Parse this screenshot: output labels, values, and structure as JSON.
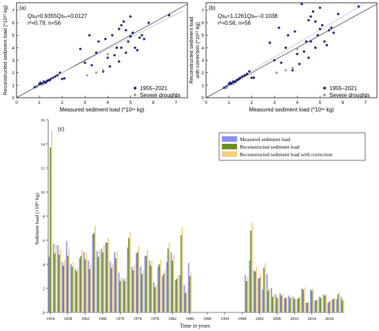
{
  "chart_data": [
    {
      "panel": "(a)",
      "type": "scatter",
      "equation": "Qsₐ=0.9355Qsₘ+0.0127",
      "stats": "r²=0.79, n=56",
      "xlabel": "Measured sediment load (*10¹¹ kg)",
      "ylabel": "Reconstructed sediment load (*10¹¹ kg)",
      "xlim": [
        0,
        7.5
      ],
      "ylim": [
        0,
        7.6
      ],
      "xticks": [
        "0",
        "1",
        "2",
        "3",
        "4",
        "5",
        "6",
        "7"
      ],
      "yticks": [
        "0",
        "1",
        "2",
        "3",
        "4",
        "5",
        "6",
        "7"
      ],
      "legend": [
        "1955–2021",
        "Severe droughts"
      ],
      "legend_position": "bottom-right",
      "series": [
        {
          "name": "1955–2021",
          "color": "#1a237e",
          "x": [
            0.8,
            0.9,
            1.0,
            1.05,
            1.1,
            1.15,
            1.2,
            1.25,
            1.3,
            1.35,
            1.4,
            1.45,
            1.5,
            1.6,
            1.7,
            1.8,
            1.9,
            2.0,
            2.1,
            2.8,
            3.0,
            3.2,
            3.3,
            3.5,
            3.6,
            3.8,
            3.9,
            4.0,
            4.1,
            4.2,
            4.3,
            4.4,
            4.5,
            4.5,
            4.6,
            4.6,
            4.7,
            4.8,
            4.8,
            4.9,
            5.0,
            5.0,
            5.1,
            5.2,
            5.3,
            5.4,
            5.5,
            5.6,
            5.8,
            6.7
          ],
          "y": [
            0.85,
            0.9,
            1.1,
            1.2,
            1.1,
            1.15,
            1.3,
            1.2,
            1.25,
            1.35,
            1.4,
            1.4,
            1.5,
            1.6,
            1.7,
            1.8,
            2.0,
            1.5,
            1.55,
            3.9,
            2.8,
            5.0,
            2.6,
            3.6,
            4.5,
            2.1,
            4.7,
            3.2,
            2.5,
            5.0,
            3.4,
            4.0,
            5.5,
            2.9,
            5.8,
            4.0,
            6.1,
            3.6,
            5.4,
            4.5,
            6.5,
            4.9,
            5.2,
            4.0,
            3.8,
            4.8,
            5.0,
            4.7,
            6.0,
            6.6
          ]
        },
        {
          "name": "Severe droughts",
          "color": "#9e9e9e",
          "x": [
            0.9,
            1.2,
            3.1,
            3.5,
            3.8,
            4.0
          ],
          "y": [
            0.85,
            1.1,
            1.8,
            2.0,
            2.2,
            3.5
          ]
        }
      ]
    },
    {
      "panel": "(b)",
      "type": "scatter",
      "equation": "Qsₐ=1.1261Qsₘ−0.1038",
      "stats": "r²=0.56, n=56",
      "xlabel": "Measured sediment load (*10¹¹ kg)",
      "ylabel": "Reconstructed sediment load with correction (*10¹¹ kg)",
      "ylabel_line1": "Reconstructed sediment load",
      "ylabel_line2": "with correction (*10¹¹ kg)",
      "xlim": [
        0,
        7.5
      ],
      "ylim": [
        0,
        7.6
      ],
      "xticks": [
        "0",
        "1",
        "2",
        "3",
        "4",
        "5",
        "6",
        "7"
      ],
      "yticks": [
        "0",
        "1",
        "2",
        "3",
        "4",
        "5",
        "6",
        "7"
      ],
      "legend": [
        "1955–2021",
        "Severe droughts"
      ],
      "legend_position": "bottom-right",
      "series": [
        {
          "name": "1955–2021",
          "color": "#1a237e",
          "x": [
            0.8,
            0.9,
            1.0,
            1.05,
            1.1,
            1.15,
            1.2,
            1.25,
            1.3,
            1.35,
            1.4,
            1.45,
            1.5,
            1.6,
            1.7,
            1.8,
            1.9,
            2.0,
            2.1,
            2.8,
            3.0,
            3.2,
            3.3,
            3.5,
            3.6,
            3.8,
            3.9,
            4.0,
            4.1,
            4.2,
            4.3,
            4.4,
            4.5,
            4.5,
            4.6,
            4.6,
            4.7,
            4.8,
            4.8,
            4.9,
            5.0,
            5.0,
            5.1,
            5.2,
            5.3,
            5.4,
            5.5,
            5.6,
            5.8,
            6.7
          ],
          "y": [
            0.8,
            0.9,
            1.1,
            1.2,
            1.1,
            1.2,
            1.3,
            1.25,
            1.3,
            1.4,
            1.45,
            1.5,
            1.6,
            1.7,
            1.8,
            1.9,
            2.1,
            1.6,
            1.6,
            4.4,
            3.0,
            5.6,
            2.8,
            4.0,
            5.0,
            2.2,
            5.3,
            3.5,
            2.7,
            7.5,
            3.7,
            4.5,
            6.2,
            3.2,
            6.5,
            4.5,
            6.9,
            4.0,
            6.1,
            5.0,
            7.2,
            5.5,
            5.8,
            4.5,
            4.2,
            5.4,
            5.6,
            5.2,
            6.7,
            7.3
          ]
        },
        {
          "name": "Severe droughts",
          "color": "#9e9e9e",
          "x": [
            0.9,
            1.2,
            3.1,
            3.5,
            3.8,
            4.0
          ],
          "y": [
            0.8,
            1.1,
            2.0,
            2.2,
            2.4,
            3.9
          ]
        }
      ]
    },
    {
      "panel": "(c)",
      "type": "bar",
      "xlabel": "Time in years",
      "ylabel": "Sediment load (×10¹¹ kg)",
      "ylim": [
        0,
        16
      ],
      "yticks": [
        "0",
        "2",
        "4",
        "6",
        "8",
        "10",
        "12",
        "14",
        "16"
      ],
      "xticks": [
        "1954",
        "1958",
        "1962",
        "1966",
        "1970",
        "1974",
        "1978",
        "1982",
        "1986",
        "1990",
        "1994",
        "1998",
        "2002",
        "2006",
        "2010",
        "2014",
        "2018"
      ],
      "legend_position": "top-right",
      "categories": [
        1954,
        1955,
        1956,
        1957,
        1958,
        1959,
        1960,
        1961,
        1962,
        1963,
        1964,
        1965,
        1966,
        1967,
        1968,
        1969,
        1970,
        1971,
        1972,
        1973,
        1974,
        1975,
        1976,
        1977,
        1978,
        1979,
        1980,
        1981,
        1982,
        1983,
        1984,
        1985,
        1986,
        1987,
        1988,
        1989,
        1990,
        1991,
        1992,
        1993,
        1994,
        1995,
        1996,
        1997,
        1998,
        1999,
        2000,
        2001,
        2002,
        2003,
        2004,
        2005,
        2006,
        2007,
        2008,
        2009,
        2010,
        2011,
        2012,
        2013,
        2014,
        2015,
        2016,
        2017,
        2018,
        2019,
        2020,
        2021
      ],
      "series": [
        {
          "name": "Measured sediment load",
          "color": "#8a8ef0",
          "values": [
            4.6,
            5.7,
            5.6,
            4.2,
            5.9,
            4.0,
            3.6,
            4.5,
            5.0,
            4.3,
            6.5,
            5.1,
            5.3,
            5.8,
            4.2,
            5.0,
            3.3,
            2.8,
            5.4,
            3.8,
            4.9,
            3.8,
            4.7,
            4.3,
            2.5,
            3.8,
            3.0,
            4.2,
            5.0,
            2.7,
            3.1,
            2.3,
            4.1,
            null,
            null,
            null,
            null,
            null,
            null,
            null,
            null,
            null,
            null,
            null,
            null,
            3.1,
            4.3,
            3.5,
            2.8,
            1.9,
            3.2,
            2.0,
            1.5,
            1.6,
            1.2,
            1.4,
            1.3,
            1.1,
            2.0,
            0.8,
            1.9,
            1.0,
            1.3,
            1.5,
            0.8,
            1.1,
            1.1,
            1.3
          ]
        },
        {
          "name": "Reconstructed sediment load",
          "color": "#6b8e23",
          "values": [
            13.7,
            4.9,
            4.8,
            3.9,
            4.7,
            3.8,
            3.4,
            4.7,
            4.4,
            3.6,
            6.6,
            4.6,
            5.0,
            5.8,
            3.7,
            4.5,
            2.6,
            2.6,
            6.2,
            3.5,
            5.0,
            3.2,
            4.7,
            3.9,
            2.1,
            4.0,
            3.2,
            5.3,
            4.3,
            2.8,
            6.4,
            1.6,
            3.0,
            null,
            null,
            null,
            null,
            null,
            null,
            null,
            null,
            null,
            null,
            null,
            null,
            2.6,
            6.8,
            3.4,
            2.9,
            3.7,
            1.8,
            1.3,
            1.2,
            1.4,
            1.2,
            1.2,
            1.1,
            1.2,
            1.9,
            0.8,
            1.8,
            1.0,
            1.2,
            1.4,
            0.9,
            1.1,
            1.5,
            1.0
          ]
        },
        {
          "name": "Reconstructed sediment load with correction",
          "color": "#f2cf7f",
          "values": [
            15.1,
            5.6,
            5.3,
            4.4,
            5.3,
            4.2,
            3.7,
            5.2,
            4.9,
            4.0,
            7.2,
            5.2,
            5.6,
            6.2,
            4.0,
            5.1,
            2.9,
            2.9,
            6.7,
            3.9,
            5.5,
            3.5,
            5.2,
            4.3,
            2.3,
            4.4,
            3.5,
            5.8,
            4.8,
            3.1,
            7.1,
            1.8,
            3.3,
            null,
            null,
            null,
            null,
            null,
            null,
            null,
            null,
            null,
            null,
            null,
            null,
            2.9,
            7.5,
            3.8,
            3.2,
            4.1,
            2.0,
            1.5,
            1.3,
            1.5,
            1.3,
            1.3,
            1.2,
            1.3,
            2.1,
            0.9,
            2.0,
            1.1,
            1.3,
            1.5,
            1.0,
            1.2,
            1.7,
            1.1
          ]
        }
      ]
    }
  ]
}
